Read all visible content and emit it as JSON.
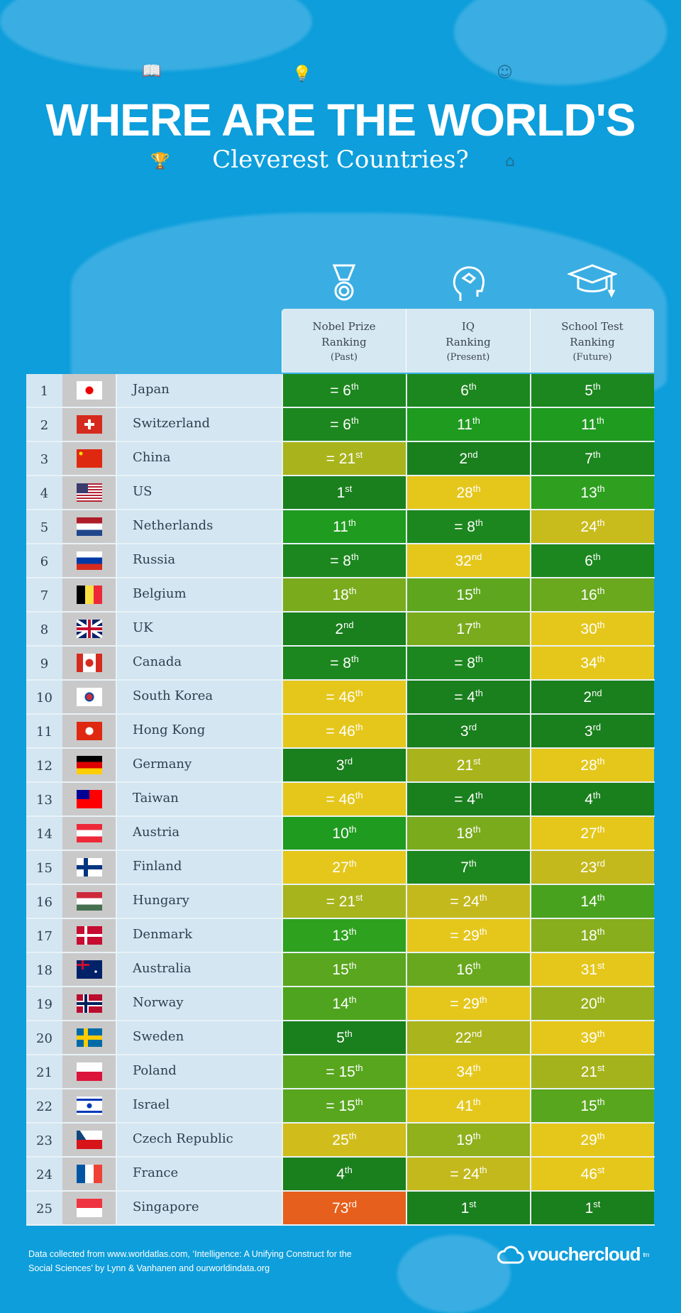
{
  "title": "WHERE ARE THE WORLD'S",
  "subtitle": "Cleverest Countries?",
  "columns": [
    {
      "icon": "medal-icon",
      "line1": "Nobel Prize",
      "line2": "Ranking",
      "line3": "(Past)"
    },
    {
      "icon": "brain-head-icon",
      "line1": "IQ",
      "line2": "Ranking",
      "line3": "(Present)"
    },
    {
      "icon": "graduation-cap-icon",
      "line1": "School Test",
      "line2": "Ranking",
      "line3": "(Future)"
    }
  ],
  "rows": [
    {
      "rank": "1",
      "flag": "japan",
      "country": "Japan",
      "cells": [
        {
          "v": "= 6",
          "s": "th",
          "c": "#1c871e"
        },
        {
          "v": "6",
          "s": "th",
          "c": "#1c871e"
        },
        {
          "v": "5",
          "s": "th",
          "c": "#1c871e"
        }
      ]
    },
    {
      "rank": "2",
      "flag": "switzerland",
      "country": "Switzerland",
      "cells": [
        {
          "v": "= 6",
          "s": "th",
          "c": "#1c871e"
        },
        {
          "v": "11",
          "s": "th",
          "c": "#1f9b1f"
        },
        {
          "v": "11",
          "s": "th",
          "c": "#1f9b1f"
        }
      ]
    },
    {
      "rank": "3",
      "flag": "china",
      "country": "China",
      "cells": [
        {
          "v": "= 21",
          "s": "st",
          "c": "#a9b41c"
        },
        {
          "v": "2",
          "s": "nd",
          "c": "#1a7f1d"
        },
        {
          "v": "7",
          "s": "th",
          "c": "#1c871e"
        }
      ]
    },
    {
      "rank": "4",
      "flag": "us",
      "country": "US",
      "cells": [
        {
          "v": "1",
          "s": "st",
          "c": "#1a7f1d"
        },
        {
          "v": "28",
          "s": "th",
          "c": "#e5c71c"
        },
        {
          "v": "13",
          "s": "th",
          "c": "#2e9f1f"
        }
      ]
    },
    {
      "rank": "5",
      "flag": "netherlands",
      "country": "Netherlands",
      "cells": [
        {
          "v": "11",
          "s": "th",
          "c": "#1f9b1f"
        },
        {
          "v": "= 8",
          "s": "th",
          "c": "#1c871e"
        },
        {
          "v": "24",
          "s": "th",
          "c": "#c8bb1c"
        }
      ]
    },
    {
      "rank": "6",
      "flag": "russia",
      "country": "Russia",
      "cells": [
        {
          "v": "= 8",
          "s": "th",
          "c": "#1c871e"
        },
        {
          "v": "32",
          "s": "nd",
          "c": "#e5c71c"
        },
        {
          "v": "6",
          "s": "th",
          "c": "#1c871e"
        }
      ]
    },
    {
      "rank": "7",
      "flag": "belgium",
      "country": "Belgium",
      "cells": [
        {
          "v": "18",
          "s": "th",
          "c": "#7aab1d"
        },
        {
          "v": "15",
          "s": "th",
          "c": "#5ea61e"
        },
        {
          "v": "16",
          "s": "th",
          "c": "#6aa81e"
        }
      ]
    },
    {
      "rank": "8",
      "flag": "uk",
      "country": "UK",
      "cells": [
        {
          "v": "2",
          "s": "nd",
          "c": "#1a7f1d"
        },
        {
          "v": "17",
          "s": "th",
          "c": "#7aab1d"
        },
        {
          "v": "30",
          "s": "th",
          "c": "#e5c71c"
        }
      ]
    },
    {
      "rank": "9",
      "flag": "canada",
      "country": "Canada",
      "cells": [
        {
          "v": "= 8",
          "s": "th",
          "c": "#1c871e"
        },
        {
          "v": "= 8",
          "s": "th",
          "c": "#1c871e"
        },
        {
          "v": "34",
          "s": "th",
          "c": "#e5c71c"
        }
      ]
    },
    {
      "rank": "10",
      "flag": "south-korea",
      "country": "South Korea",
      "cells": [
        {
          "v": "= 46",
          "s": "th",
          "c": "#e5c71c"
        },
        {
          "v": "= 4",
          "s": "th",
          "c": "#1a7f1d"
        },
        {
          "v": "2",
          "s": "nd",
          "c": "#1a7f1d"
        }
      ]
    },
    {
      "rank": "11",
      "flag": "hong-kong",
      "country": "Hong Kong",
      "cells": [
        {
          "v": "= 46",
          "s": "th",
          "c": "#e5c71c"
        },
        {
          "v": "3",
          "s": "rd",
          "c": "#1a7f1d"
        },
        {
          "v": "3",
          "s": "rd",
          "c": "#1a7f1d"
        }
      ]
    },
    {
      "rank": "12",
      "flag": "germany",
      "country": "Germany",
      "cells": [
        {
          "v": "3",
          "s": "rd",
          "c": "#1a7f1d"
        },
        {
          "v": "21",
          "s": "st",
          "c": "#a9b41c"
        },
        {
          "v": "28",
          "s": "th",
          "c": "#e5c71c"
        }
      ]
    },
    {
      "rank": "13",
      "flag": "taiwan",
      "country": "Taiwan",
      "cells": [
        {
          "v": "= 46",
          "s": "th",
          "c": "#e5c71c"
        },
        {
          "v": "= 4",
          "s": "th",
          "c": "#1a7f1d"
        },
        {
          "v": "4",
          "s": "th",
          "c": "#1a7f1d"
        }
      ]
    },
    {
      "rank": "14",
      "flag": "austria",
      "country": "Austria",
      "cells": [
        {
          "v": "10",
          "s": "th",
          "c": "#1f9b1f"
        },
        {
          "v": "18",
          "s": "th",
          "c": "#7aab1d"
        },
        {
          "v": "27",
          "s": "th",
          "c": "#e5c71c"
        }
      ]
    },
    {
      "rank": "15",
      "flag": "finland",
      "country": "Finland",
      "cells": [
        {
          "v": "27",
          "s": "th",
          "c": "#e5c71c"
        },
        {
          "v": "7",
          "s": "th",
          "c": "#1c871e"
        },
        {
          "v": "23",
          "s": "rd",
          "c": "#c4b91c"
        }
      ]
    },
    {
      "rank": "16",
      "flag": "hungary",
      "country": "Hungary",
      "cells": [
        {
          "v": "= 21",
          "s": "st",
          "c": "#a8b41c"
        },
        {
          "v": "= 24",
          "s": "th",
          "c": "#c4b91c"
        },
        {
          "v": "14",
          "s": "th",
          "c": "#48a21e"
        }
      ]
    },
    {
      "rank": "17",
      "flag": "denmark",
      "country": "Denmark",
      "cells": [
        {
          "v": "13",
          "s": "th",
          "c": "#2ea11f"
        },
        {
          "v": "= 29",
          "s": "th",
          "c": "#e5c71c"
        },
        {
          "v": "18",
          "s": "th",
          "c": "#88ae1d"
        }
      ]
    },
    {
      "rank": "18",
      "flag": "australia",
      "country": "Australia",
      "cells": [
        {
          "v": "15",
          "s": "th",
          "c": "#5aa61e"
        },
        {
          "v": "16",
          "s": "th",
          "c": "#68a81e"
        },
        {
          "v": "31",
          "s": "st",
          "c": "#e5c71c"
        }
      ]
    },
    {
      "rank": "19",
      "flag": "norway",
      "country": "Norway",
      "cells": [
        {
          "v": "14",
          "s": "th",
          "c": "#4ea41e"
        },
        {
          "v": "= 29",
          "s": "th",
          "c": "#e5c71c"
        },
        {
          "v": "20",
          "s": "th",
          "c": "#98b11c"
        }
      ]
    },
    {
      "rank": "20",
      "flag": "sweden",
      "country": "Sweden",
      "cells": [
        {
          "v": "5",
          "s": "th",
          "c": "#1a7f1d"
        },
        {
          "v": "22",
          "s": "nd",
          "c": "#aab41c"
        },
        {
          "v": "39",
          "s": "th",
          "c": "#e5c71c"
        }
      ]
    },
    {
      "rank": "21",
      "flag": "poland",
      "country": "Poland",
      "cells": [
        {
          "v": "= 15",
          "s": "th",
          "c": "#58a61e"
        },
        {
          "v": "34",
          "s": "th",
          "c": "#e5c71c"
        },
        {
          "v": "21",
          "s": "st",
          "c": "#a4b31c"
        }
      ]
    },
    {
      "rank": "22",
      "flag": "israel",
      "country": "Israel",
      "cells": [
        {
          "v": "= 15",
          "s": "th",
          "c": "#58a61e"
        },
        {
          "v": "41",
          "s": "th",
          "c": "#e5c71c"
        },
        {
          "v": "15",
          "s": "th",
          "c": "#58a61e"
        }
      ]
    },
    {
      "rank": "23",
      "flag": "czech-republic",
      "country": "Czech Republic",
      "cells": [
        {
          "v": "25",
          "s": "th",
          "c": "#d0bd1c"
        },
        {
          "v": "19",
          "s": "th",
          "c": "#90b01c"
        },
        {
          "v": "29",
          "s": "th",
          "c": "#e5c71c"
        }
      ]
    },
    {
      "rank": "24",
      "flag": "france",
      "country": "France",
      "cells": [
        {
          "v": "4",
          "s": "th",
          "c": "#1a7f1d"
        },
        {
          "v": "= 24",
          "s": "th",
          "c": "#c4b91c"
        },
        {
          "v": "46",
          "s": "st",
          "c": "#e5c71c"
        }
      ]
    },
    {
      "rank": "25",
      "flag": "singapore",
      "country": "Singapore",
      "cells": [
        {
          "v": "73",
          "s": "rd",
          "c": "#e65f1c"
        },
        {
          "v": "1",
          "s": "st",
          "c": "#1a7f1d"
        },
        {
          "v": "1",
          "s": "st",
          "c": "#1a7f1d"
        }
      ]
    }
  ],
  "footer": {
    "line1": "Data collected from www.worldatlas.com, ‘Intelligence: A Unifying Construct for the",
    "line2": "Social Sciences’ by Lynn & Vanhanen and ourworldindata.org"
  },
  "logo": {
    "text": "vouchercloud",
    "tm": "tm"
  }
}
